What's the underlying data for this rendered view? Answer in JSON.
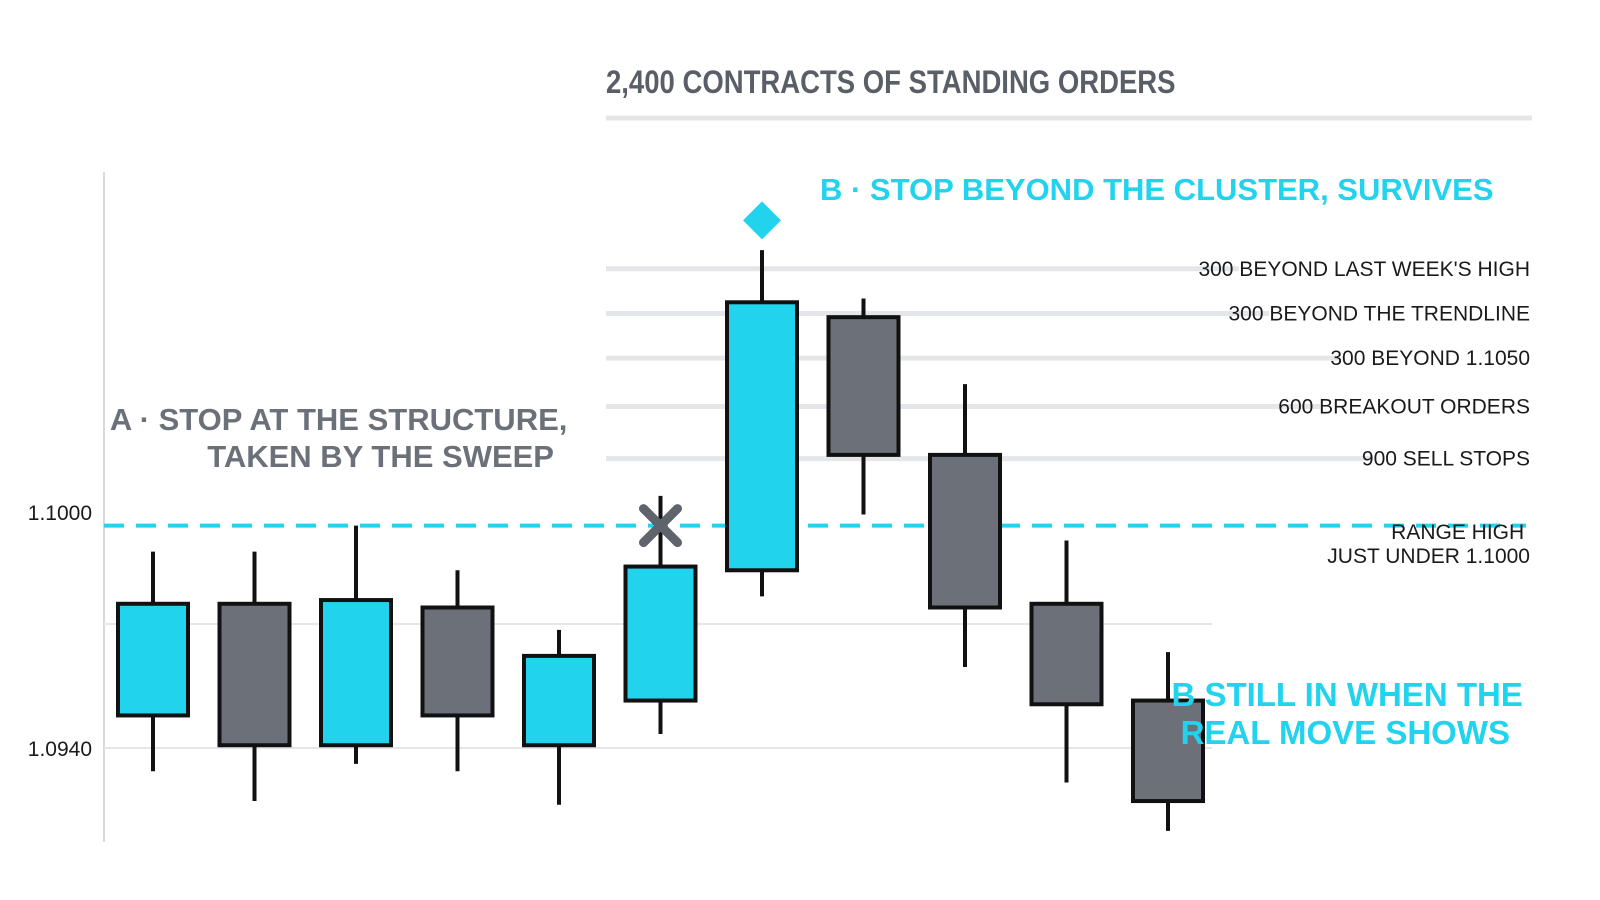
{
  "chart_data": {
    "type": "candlestick",
    "title": "2,400 CONTRACTS OF STANDING ORDERS",
    "y_ticks": [
      {
        "value": 1.1,
        "label": "1.1000"
      },
      {
        "value": 1.094,
        "label": "1.0940"
      }
    ],
    "ylim": [
      1.0915,
      1.1095
    ],
    "threshold": {
      "value": 1.1,
      "style": "dashed",
      "color": "#22d3ee"
    },
    "candles": [
      {
        "open": 1.0949,
        "close": 1.0979,
        "high": 1.0993,
        "low": 1.0934,
        "color": "cyan"
      },
      {
        "open": 1.0979,
        "close": 1.0941,
        "high": 1.0993,
        "low": 1.0926,
        "color": "gray"
      },
      {
        "open": 1.0941,
        "close": 1.098,
        "high": 1.1,
        "low": 1.0936,
        "color": "cyan"
      },
      {
        "open": 1.0978,
        "close": 1.0949,
        "high": 1.0988,
        "low": 1.0934,
        "color": "gray"
      },
      {
        "open": 1.0941,
        "close": 1.0965,
        "high": 1.0972,
        "low": 1.0925,
        "color": "cyan"
      },
      {
        "open": 1.0953,
        "close": 1.0989,
        "high": 1.1008,
        "low": 1.0944,
        "color": "cyan"
      },
      {
        "open": 1.0988,
        "close": 1.106,
        "high": 1.1074,
        "low": 1.0981,
        "color": "cyan"
      },
      {
        "open": 1.1056,
        "close": 1.1019,
        "high": 1.1061,
        "low": 1.1003,
        "color": "gray"
      },
      {
        "open": 1.1019,
        "close": 1.0978,
        "high": 1.1038,
        "low": 1.0962,
        "color": "gray"
      },
      {
        "open": 1.0979,
        "close": 1.0952,
        "high": 1.0996,
        "low": 1.0931,
        "color": "gray"
      },
      {
        "open": 1.0953,
        "close": 1.0926,
        "high": 1.0966,
        "low": 1.0918,
        "color": "gray"
      }
    ],
    "order_levels": [
      {
        "label": "300 BEYOND LAST WEEK'S HIGH",
        "value": 1.1069
      },
      {
        "label": "300 BEYOND THE TRENDLINE",
        "value": 1.1057
      },
      {
        "label": "300 BEYOND 1.1050",
        "value": 1.1045
      },
      {
        "label": "600 BREAKOUT ORDERS",
        "value": 1.1032
      },
      {
        "label": "900 SELL STOPS",
        "value": 1.1018
      }
    ],
    "range_high": {
      "lines": [
        "RANGE HIGH",
        "JUST UNDER 1.1000"
      ]
    },
    "annotations": {
      "a": {
        "lines": [
          "A · STOP AT THE STRUCTURE,",
          "TAKEN BY THE SWEEP"
        ],
        "marker": "x",
        "value": 1.1,
        "candle_index": 5
      },
      "b": {
        "text": "B · STOP BEYOND THE CLUSTER, SURVIVES",
        "marker": "diamond",
        "value": 1.1082,
        "candle_index": 6
      },
      "b_note": {
        "lines": [
          "B STILL IN WHEN THE",
          "REAL MOVE SHOWS"
        ]
      }
    },
    "colors": {
      "cyan": "#22d3ee",
      "gray": "#6b7079",
      "dark_text": "#5a5e66",
      "label_text": "#1a1a1a",
      "grid": "#e4e6e9"
    }
  }
}
